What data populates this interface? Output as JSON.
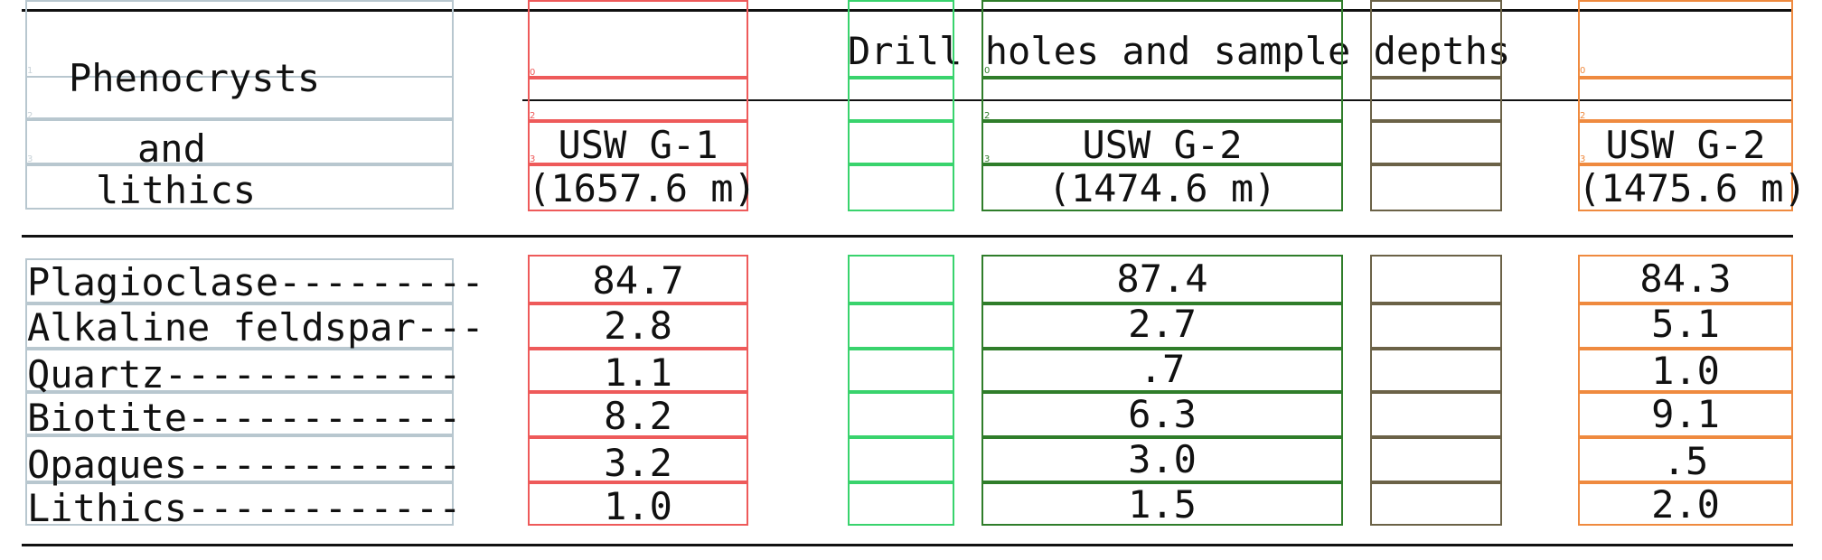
{
  "table": {
    "stub_header": {
      "line1": "Phenocrysts",
      "line2": "and",
      "line3": "lithics"
    },
    "spanner": "Drill holes and sample depths",
    "columns": [
      {
        "line1": "USW G-1",
        "line2": "(1657.6 m)"
      },
      {
        "line1": "USW G-2",
        "line2": "(1474.6 m)"
      },
      {
        "line1": "USW G-2",
        "line2": "(1475.6 m)"
      }
    ],
    "rows": [
      {
        "label": "Plagioclase---------",
        "values": [
          "84.7",
          "87.4",
          "84.3"
        ]
      },
      {
        "label": "Alkaline feldspar---",
        "values": [
          "2.8",
          "2.7",
          "5.1"
        ]
      },
      {
        "label": "Quartz-------------",
        "values": [
          "1.1",
          ".7",
          "1.0"
        ]
      },
      {
        "label": "Biotite------------",
        "values": [
          "8.2",
          "6.3",
          "9.1"
        ]
      },
      {
        "label": "Opaques------------",
        "values": [
          "3.2",
          "3.0",
          ".5"
        ]
      },
      {
        "label": "Lithics------------",
        "values": [
          "1.0",
          "1.5",
          "2.0"
        ]
      }
    ]
  }
}
